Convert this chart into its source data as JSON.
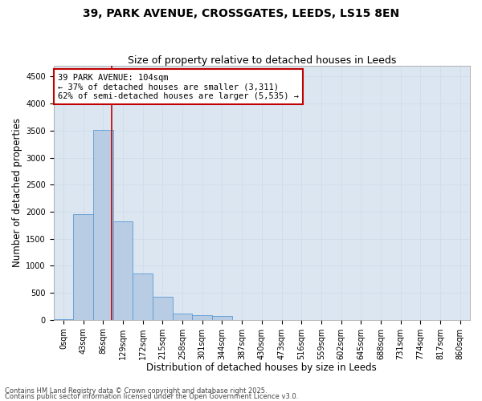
{
  "title_line1": "39, PARK AVENUE, CROSSGATES, LEEDS, LS15 8EN",
  "title_line2": "Size of property relative to detached houses in Leeds",
  "xlabel": "Distribution of detached houses by size in Leeds",
  "ylabel": "Number of detached properties",
  "categories": [
    "0sqm",
    "43sqm",
    "86sqm",
    "129sqm",
    "172sqm",
    "215sqm",
    "258sqm",
    "301sqm",
    "344sqm",
    "387sqm",
    "430sqm",
    "473sqm",
    "516sqm",
    "559sqm",
    "602sqm",
    "645sqm",
    "688sqm",
    "731sqm",
    "774sqm",
    "817sqm",
    "860sqm"
  ],
  "values": [
    5,
    1950,
    3520,
    1820,
    850,
    430,
    120,
    90,
    75,
    0,
    0,
    0,
    0,
    0,
    0,
    0,
    0,
    0,
    0,
    0,
    0
  ],
  "bar_color": "#b8cce4",
  "bar_edge_color": "#5b9bd5",
  "vline_x": 2.42,
  "vline_color": "#c00000",
  "annotation_box_text": "39 PARK AVENUE: 104sqm\n← 37% of detached houses are smaller (3,311)\n62% of semi-detached houses are larger (5,535) →",
  "ylim": [
    0,
    4700
  ],
  "yticks": [
    0,
    500,
    1000,
    1500,
    2000,
    2500,
    3000,
    3500,
    4000,
    4500
  ],
  "grid_color": "#d0dcea",
  "plot_bg_color": "#dce6f1",
  "footer_line1": "Contains HM Land Registry data © Crown copyright and database right 2025.",
  "footer_line2": "Contains public sector information licensed under the Open Government Licence v3.0.",
  "title_fontsize": 10,
  "subtitle_fontsize": 9,
  "label_fontsize": 8.5,
  "tick_fontsize": 7,
  "annotation_fontsize": 7.5,
  "footer_fontsize": 6
}
